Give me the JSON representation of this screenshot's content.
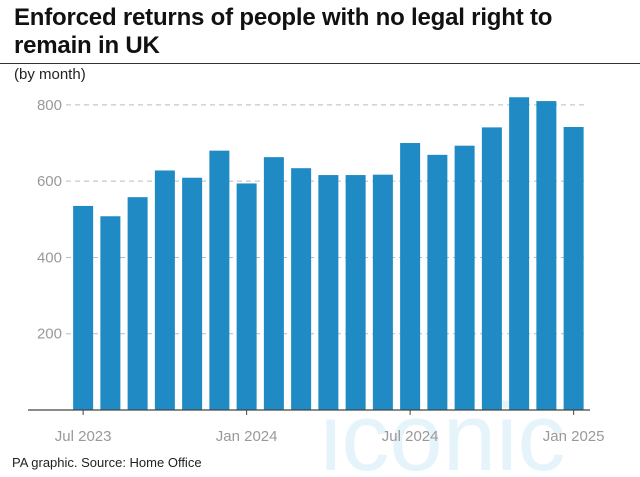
{
  "title": "Enforced returns of people with no legal right to remain in UK",
  "subtitle": "(by month)",
  "source": "PA graphic. Source: Home Office",
  "colors": {
    "bar": "#1f8ac4",
    "grid": "#bbbbbb",
    "axis": "#444444",
    "tick_text": "#999999",
    "watermark": "#cfeaf7"
  },
  "watermark_text": "iconic",
  "chart_data": {
    "type": "bar",
    "title": "Enforced returns of people with no legal right to remain in UK",
    "subtitle": "(by month)",
    "xlabel": "",
    "ylabel": "",
    "categories": [
      "Jul 2023",
      "Aug 2023",
      "Sep 2023",
      "Oct 2023",
      "Nov 2023",
      "Dec 2023",
      "Jan 2024",
      "Feb 2024",
      "Mar 2024",
      "Apr 2024",
      "May 2024",
      "Jun 2024",
      "Jul 2024",
      "Aug 2024",
      "Sep 2024",
      "Oct 2024",
      "Nov 2024",
      "Dec 2024",
      "Jan 2025"
    ],
    "values": [
      535,
      508,
      558,
      628,
      609,
      680,
      594,
      663,
      634,
      616,
      616,
      617,
      700,
      669,
      693,
      741,
      820,
      810,
      742
    ],
    "x_tick_labels": [
      "Jul 2023",
      "Jan 2024",
      "Jul 2024",
      "Jan 2025"
    ],
    "x_tick_indices": [
      0,
      6,
      12,
      18
    ],
    "y_ticks": [
      200,
      400,
      600,
      800
    ],
    "ylim": [
      0,
      860
    ],
    "grid": true,
    "legend": "none"
  }
}
